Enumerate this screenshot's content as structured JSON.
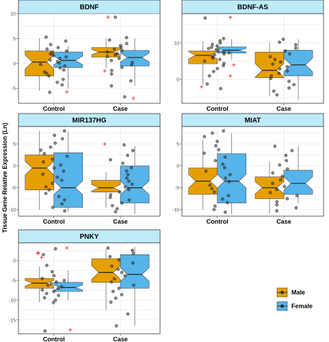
{
  "ylabel": "Tissue Gene Relative Expression (Ln)",
  "colors": {
    "male": "#E69F00",
    "female": "#56B4E9",
    "strip": "#BFEBF8",
    "outlier": "#FF3030",
    "point": "#333333",
    "grid": "#E0E0E0"
  },
  "legend": [
    {
      "key": "male",
      "label": "Male"
    },
    {
      "key": "female",
      "label": "Female"
    }
  ],
  "chart_data": [
    {
      "type": "box",
      "title": "BDNF",
      "categories": [
        "Control",
        "Case"
      ],
      "ylim": [
        -8,
        10
      ],
      "yticks": [
        -5,
        0,
        5,
        10
      ],
      "boxes": [
        {
          "group": "Control",
          "sex": "male",
          "q1": -2.5,
          "median": 0.3,
          "q3": 2.5,
          "whisker_low": -5.5,
          "whisker_high": 5.0,
          "outliers": []
        },
        {
          "group": "Control",
          "sex": "female",
          "q1": -0.8,
          "median": 0.6,
          "q3": 2.3,
          "whisker_low": -5.0,
          "whisker_high": 3.5,
          "outliers": [
            -5.7
          ]
        },
        {
          "group": "Case",
          "sex": "male",
          "q1": 1.3,
          "median": 2.3,
          "q3": 3.2,
          "whisker_low": -1.0,
          "whisker_high": 5.0,
          "outliers": [
            -1.5,
            9.3
          ]
        },
        {
          "group": "Case",
          "sex": "female",
          "q1": -0.5,
          "median": 1.2,
          "q3": 2.6,
          "whisker_low": -4.5,
          "whisker_high": 5.0,
          "outliers": [
            -7.0
          ]
        }
      ],
      "points": [
        {
          "group": "Control",
          "values": [
            5.3,
            4.5,
            3.8,
            3.2,
            2.9,
            2.5,
            2.2,
            1.9,
            1.6,
            1.3,
            1.0,
            0.7,
            0.4,
            0.1,
            -0.2,
            -0.5,
            -0.9,
            -1.3,
            -1.7,
            -2.0,
            -2.5,
            -3.2,
            -3.8,
            -4.3,
            -5.8
          ]
        },
        {
          "group": "Case",
          "values": [
            9.3,
            5.2,
            4.7,
            4.0,
            3.6,
            3.2,
            2.9,
            2.6,
            2.3,
            2.0,
            1.7,
            1.4,
            1.0,
            0.6,
            0.2,
            -0.3,
            -0.8,
            -1.4,
            -2.1,
            -3.5,
            -4.5,
            -6.7
          ]
        }
      ]
    },
    {
      "type": "box",
      "title": "BDNF-AS",
      "categories": [
        "Control",
        "Case"
      ],
      "ylim": [
        -6.5,
        18
      ],
      "yticks": [
        0,
        10
      ],
      "boxes": [
        {
          "group": "Control",
          "sex": "male",
          "q1": 4.3,
          "median": 6.6,
          "q3": 7.8,
          "whisker_low": -1.5,
          "whisker_high": 10.5,
          "outliers": [
            -2.0
          ]
        },
        {
          "group": "Control",
          "sex": "female",
          "q1": 7.2,
          "median": 8.0,
          "q3": 8.9,
          "whisker_low": 5.5,
          "whisker_high": 11.0,
          "outliers": [
            17.0,
            4.0,
            1.0
          ]
        },
        {
          "group": "Case",
          "sex": "male",
          "q1": 0.5,
          "median": 2.5,
          "q3": 7.5,
          "whisker_low": -4.5,
          "whisker_high": 10.0,
          "outliers": []
        },
        {
          "group": "Case",
          "sex": "female",
          "q1": 1.0,
          "median": 4.0,
          "q3": 8.0,
          "whisker_low": -5.5,
          "whisker_high": 11.0,
          "outliers": []
        }
      ],
      "points": [
        {
          "group": "Control",
          "values": [
            16.8,
            11.2,
            10.6,
            10.0,
            9.6,
            9.2,
            8.8,
            8.5,
            8.2,
            7.9,
            7.6,
            7.3,
            7.0,
            6.7,
            6.3,
            5.9,
            5.5,
            5.0,
            4.4,
            3.8,
            3.0,
            2.2,
            1.0,
            -1.2,
            -2.5
          ]
        },
        {
          "group": "Case",
          "values": [
            11.0,
            10.2,
            9.5,
            8.6,
            7.8,
            7.0,
            6.2,
            5.5,
            4.8,
            4.2,
            3.5,
            2.9,
            2.3,
            1.7,
            1.0,
            0.3,
            -0.5,
            -1.4,
            -2.3,
            -3.2,
            -4.2
          ]
        }
      ]
    },
    {
      "type": "box",
      "title": "MIR137HG",
      "categories": [
        "Control",
        "Case"
      ],
      "ylim": [
        -11.5,
        9
      ],
      "yticks": [
        -10,
        -5,
        0,
        5
      ],
      "boxes": [
        {
          "group": "Control",
          "sex": "male",
          "q1": -5.5,
          "median": -0.5,
          "q3": 2.5,
          "whisker_low": -10.0,
          "whisker_high": 8.0,
          "outliers": []
        },
        {
          "group": "Control",
          "sex": "female",
          "q1": -9.5,
          "median": -5.0,
          "q3": 3.0,
          "whisker_low": -10.5,
          "whisker_high": 8.0,
          "outliers": []
        },
        {
          "group": "Case",
          "sex": "male",
          "q1": -6.0,
          "median": -5.0,
          "q3": -3.3,
          "whisker_low": -9.5,
          "whisker_high": -1.5,
          "outliers": [
            5.0
          ]
        },
        {
          "group": "Case",
          "sex": "female",
          "q1": -8.5,
          "median": -5.0,
          "q3": 0.0,
          "whisker_low": -11.0,
          "whisker_high": 4.5,
          "outliers": []
        }
      ],
      "points": [
        {
          "group": "Control",
          "values": [
            8.0,
            7.0,
            6.2,
            5.2,
            4.3,
            3.6,
            2.8,
            2.2,
            1.5,
            0.9,
            0.2,
            -0.5,
            -1.2,
            -1.9,
            -2.6,
            -3.3,
            -4.0,
            -4.8,
            -5.5,
            -6.3,
            -7.0,
            -7.8,
            -8.7,
            -9.5,
            -10.3
          ]
        },
        {
          "group": "Case",
          "values": [
            4.8,
            3.5,
            2.4,
            1.4,
            0.6,
            -0.4,
            -1.2,
            -2.0,
            -2.8,
            -3.5,
            -4.2,
            -4.8,
            -5.4,
            -6.0,
            -6.6,
            -7.2,
            -7.8,
            -8.5,
            -9.1,
            -9.8,
            -10.5
          ]
        }
      ]
    },
    {
      "type": "box",
      "title": "MIAT",
      "categories": [
        "Control",
        "Case"
      ],
      "ylim": [
        -11.5,
        9
      ],
      "yticks": [
        -10,
        -5,
        0,
        5
      ],
      "boxes": [
        {
          "group": "Control",
          "sex": "male",
          "q1": -6.5,
          "median": -3.5,
          "q3": -0.5,
          "whisker_low": -10.0,
          "whisker_high": 6.0,
          "outliers": []
        },
        {
          "group": "Control",
          "sex": "female",
          "q1": -8.5,
          "median": -3.5,
          "q3": 2.8,
          "whisker_low": -11.0,
          "whisker_high": 7.5,
          "outliers": []
        },
        {
          "group": "Case",
          "sex": "male",
          "q1": -7.5,
          "median": -5.0,
          "q3": -2.5,
          "whisker_low": -11.0,
          "whisker_high": 1.0,
          "outliers": []
        },
        {
          "group": "Case",
          "sex": "female",
          "q1": -6.5,
          "median": -4.0,
          "q3": -1.0,
          "whisker_low": -8.5,
          "whisker_high": 4.5,
          "outliers": []
        }
      ],
      "points": [
        {
          "group": "Control",
          "values": [
            8.0,
            7.5,
            6.7,
            5.6,
            4.6,
            3.7,
            2.9,
            2.0,
            1.2,
            0.4,
            -0.4,
            -1.2,
            -2.0,
            -2.8,
            -3.6,
            -4.4,
            -5.2,
            -6.0,
            -6.8,
            -7.6,
            -8.4,
            -9.2,
            -10.0,
            -10.6
          ]
        },
        {
          "group": "Case",
          "values": [
            4.5,
            3.5,
            2.4,
            1.2,
            0.2,
            -0.7,
            -1.6,
            -2.4,
            -3.2,
            -4.0,
            -4.7,
            -5.4,
            -6.1,
            -6.8,
            -7.5,
            -8.2,
            -8.9,
            -9.6,
            -10.3
          ]
        }
      ]
    },
    {
      "type": "box",
      "title": "PNKY",
      "categories": [
        "Control",
        "Case"
      ],
      "ylim": [
        -18.5,
        4.5
      ],
      "yticks": [
        -15,
        -10,
        -5,
        0
      ],
      "boxes": [
        {
          "group": "Control",
          "sex": "male",
          "q1": -7.0,
          "median": -5.7,
          "q3": -4.5,
          "whisker_low": -10.5,
          "whisker_high": -1.5,
          "outliers": [
            2.0,
            0.8,
            1.8
          ]
        },
        {
          "group": "Control",
          "sex": "female",
          "q1": -7.8,
          "median": -6.8,
          "q3": -5.5,
          "whisker_low": -10.0,
          "whisker_high": -2.5,
          "outliers": [
            3.2,
            -17.5
          ]
        },
        {
          "group": "Case",
          "sex": "male",
          "q1": -5.5,
          "median": -3.0,
          "q3": 0.5,
          "whisker_low": -12.5,
          "whisker_high": 3.0,
          "outliers": []
        },
        {
          "group": "Case",
          "sex": "female",
          "q1": -7.0,
          "median": -3.5,
          "q3": 1.5,
          "whisker_low": -16.5,
          "whisker_high": 3.5,
          "outliers": []
        }
      ],
      "points": [
        {
          "group": "Control",
          "values": [
            3.0,
            1.5,
            -1.2,
            -2.8,
            -3.8,
            -4.5,
            -5.0,
            -5.4,
            -5.8,
            -6.2,
            -6.6,
            -7.0,
            -7.4,
            -7.8,
            -8.3,
            -8.8,
            -9.4,
            -10.0,
            -10.6,
            -17.8
          ]
        },
        {
          "group": "Case",
          "values": [
            3.2,
            2.6,
            1.8,
            1.0,
            0.2,
            -0.6,
            -1.4,
            -2.2,
            -3.0,
            -3.8,
            -4.6,
            -5.4,
            -6.2,
            -7.0,
            -7.8,
            -8.6,
            -9.5,
            -10.5,
            -13.5,
            -16.5
          ]
        }
      ]
    }
  ]
}
